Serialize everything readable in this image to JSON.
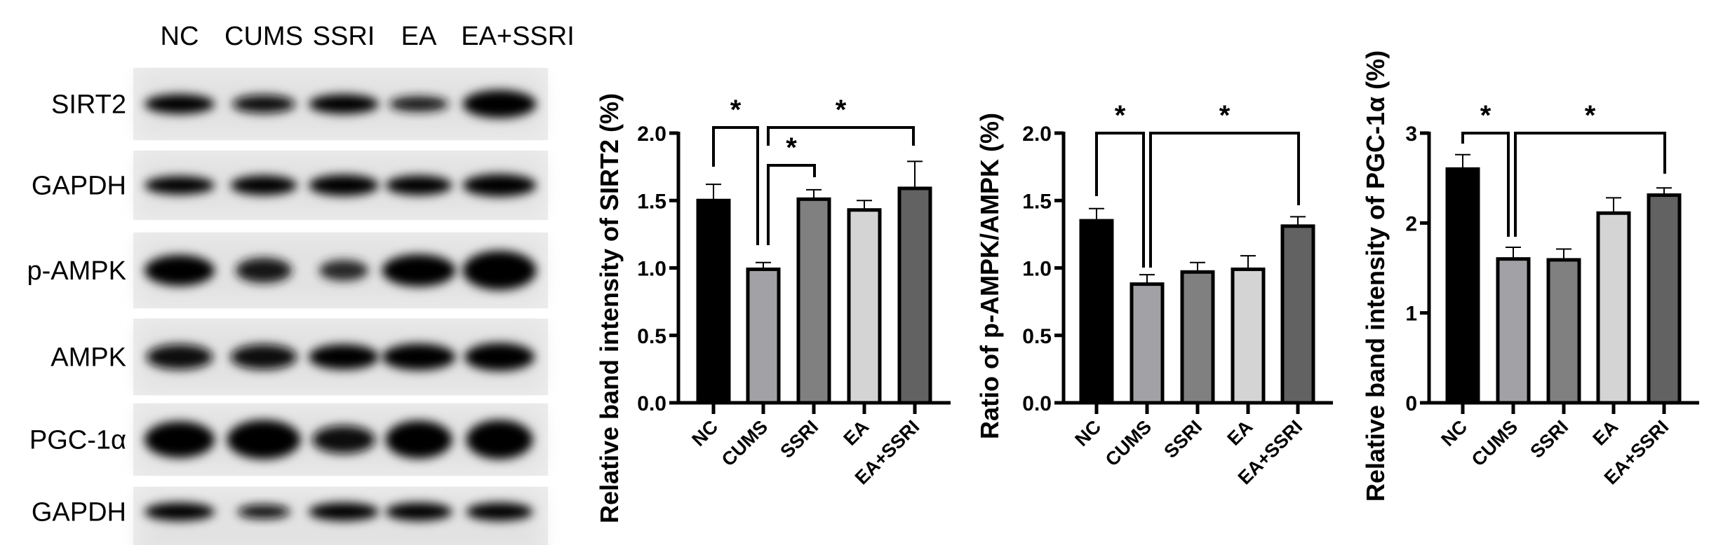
{
  "blot": {
    "lanes": [
      "NC",
      "CUMS",
      "SSRI",
      "EA",
      "EA+SSRI"
    ],
    "rows": [
      "SIRT2",
      "GAPDH",
      "p-AMPK",
      "AMPK",
      "PGC-1α",
      "GAPDH"
    ]
  },
  "chart_data": [
    {
      "type": "bar",
      "categories": [
        "NC",
        "CUMS",
        "SSRI",
        "EA",
        "EA+SSRI"
      ],
      "values": [
        1.5,
        0.99,
        1.51,
        1.43,
        1.59
      ],
      "errors": [
        0.12,
        0.05,
        0.07,
        0.07,
        0.2
      ],
      "colors": [
        "#000000",
        "#a2a2a6",
        "#808080",
        "#d4d4d4",
        "#626262"
      ],
      "ylabel": "Relative band intensity of SIRT2 (%)",
      "ylim": [
        0,
        2.0
      ],
      "yticks": [
        "0.0",
        "0.5",
        "1.0",
        "1.5",
        "2.0"
      ],
      "significance": [
        {
          "pair": [
            "NC",
            "CUMS"
          ],
          "label": "*"
        },
        {
          "pair": [
            "CUMS",
            "EA+SSRI"
          ],
          "label": "*"
        },
        {
          "pair": [
            "CUMS",
            "SSRI"
          ],
          "label": "*"
        }
      ]
    },
    {
      "type": "bar",
      "categories": [
        "NC",
        "CUMS",
        "SSRI",
        "EA",
        "EA+SSRI"
      ],
      "values": [
        1.35,
        0.88,
        0.97,
        0.99,
        1.31
      ],
      "errors": [
        0.09,
        0.07,
        0.07,
        0.1,
        0.07
      ],
      "colors": [
        "#000000",
        "#a2a2a6",
        "#808080",
        "#d4d4d4",
        "#626262"
      ],
      "ylabel": "Ratio of p-AMPK/AMPK (%)",
      "ylim": [
        0,
        2.0
      ],
      "yticks": [
        "0.0",
        "0.5",
        "1.0",
        "1.5",
        "2.0"
      ],
      "significance": [
        {
          "pair": [
            "NC",
            "CUMS"
          ],
          "label": "*"
        },
        {
          "pair": [
            "CUMS",
            "EA+SSRI"
          ],
          "label": "*"
        }
      ]
    },
    {
      "type": "bar",
      "categories": [
        "NC",
        "CUMS",
        "SSRI",
        "EA",
        "EA+SSRI"
      ],
      "values": [
        2.6,
        1.6,
        1.59,
        2.11,
        2.31
      ],
      "errors": [
        0.16,
        0.13,
        0.12,
        0.17,
        0.08
      ],
      "colors": [
        "#000000",
        "#a2a2a6",
        "#808080",
        "#d4d4d4",
        "#626262"
      ],
      "ylabel": "Relative band intensity of PGC-1α (%)",
      "ylim": [
        0,
        3
      ],
      "yticks": [
        "0",
        "1",
        "2",
        "3"
      ],
      "significance": [
        {
          "pair": [
            "NC",
            "CUMS"
          ],
          "label": "*"
        },
        {
          "pair": [
            "CUMS",
            "EA+SSRI"
          ],
          "label": "*"
        }
      ]
    }
  ]
}
